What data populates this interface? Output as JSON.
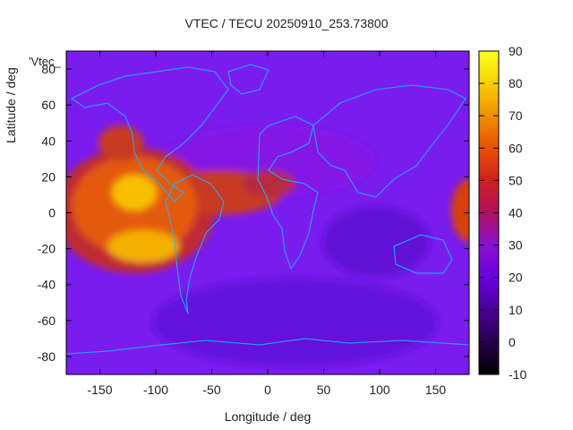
{
  "chart_data": {
    "type": "heatmap",
    "title": "VTEC / TECU 20250910_253.73800",
    "xlabel": "Longitude / deg",
    "ylabel": "Latitude / deg",
    "legend_key": "'Vtec_",
    "xlim": [
      -180,
      180
    ],
    "ylim": [
      -90,
      90
    ],
    "x_ticks": [
      -150,
      -100,
      -50,
      0,
      50,
      100,
      150
    ],
    "y_ticks": [
      -80,
      -60,
      -40,
      -20,
      0,
      20,
      40,
      60,
      80
    ],
    "colorbar": {
      "min": -10,
      "max": 90,
      "ticks": [
        -10,
        0,
        10,
        20,
        30,
        40,
        50,
        60,
        70,
        80,
        90
      ]
    },
    "grid": false,
    "regions": [
      {
        "desc": "equatorial anomaly main",
        "lon": -115,
        "lat": 5,
        "value": 75
      },
      {
        "desc": "southern crest",
        "lon": -125,
        "lat": -20,
        "value": 78
      },
      {
        "desc": "north central",
        "lon": -130,
        "lat": 25,
        "value": 55
      },
      {
        "desc": "atlantic band",
        "lon": -30,
        "lat": 12,
        "value": 48
      },
      {
        "desc": "east pacific edge",
        "lon": 178,
        "lat": 0,
        "value": 45
      },
      {
        "desc": "background",
        "lon": 60,
        "lat": -60,
        "value": 14
      }
    ]
  }
}
